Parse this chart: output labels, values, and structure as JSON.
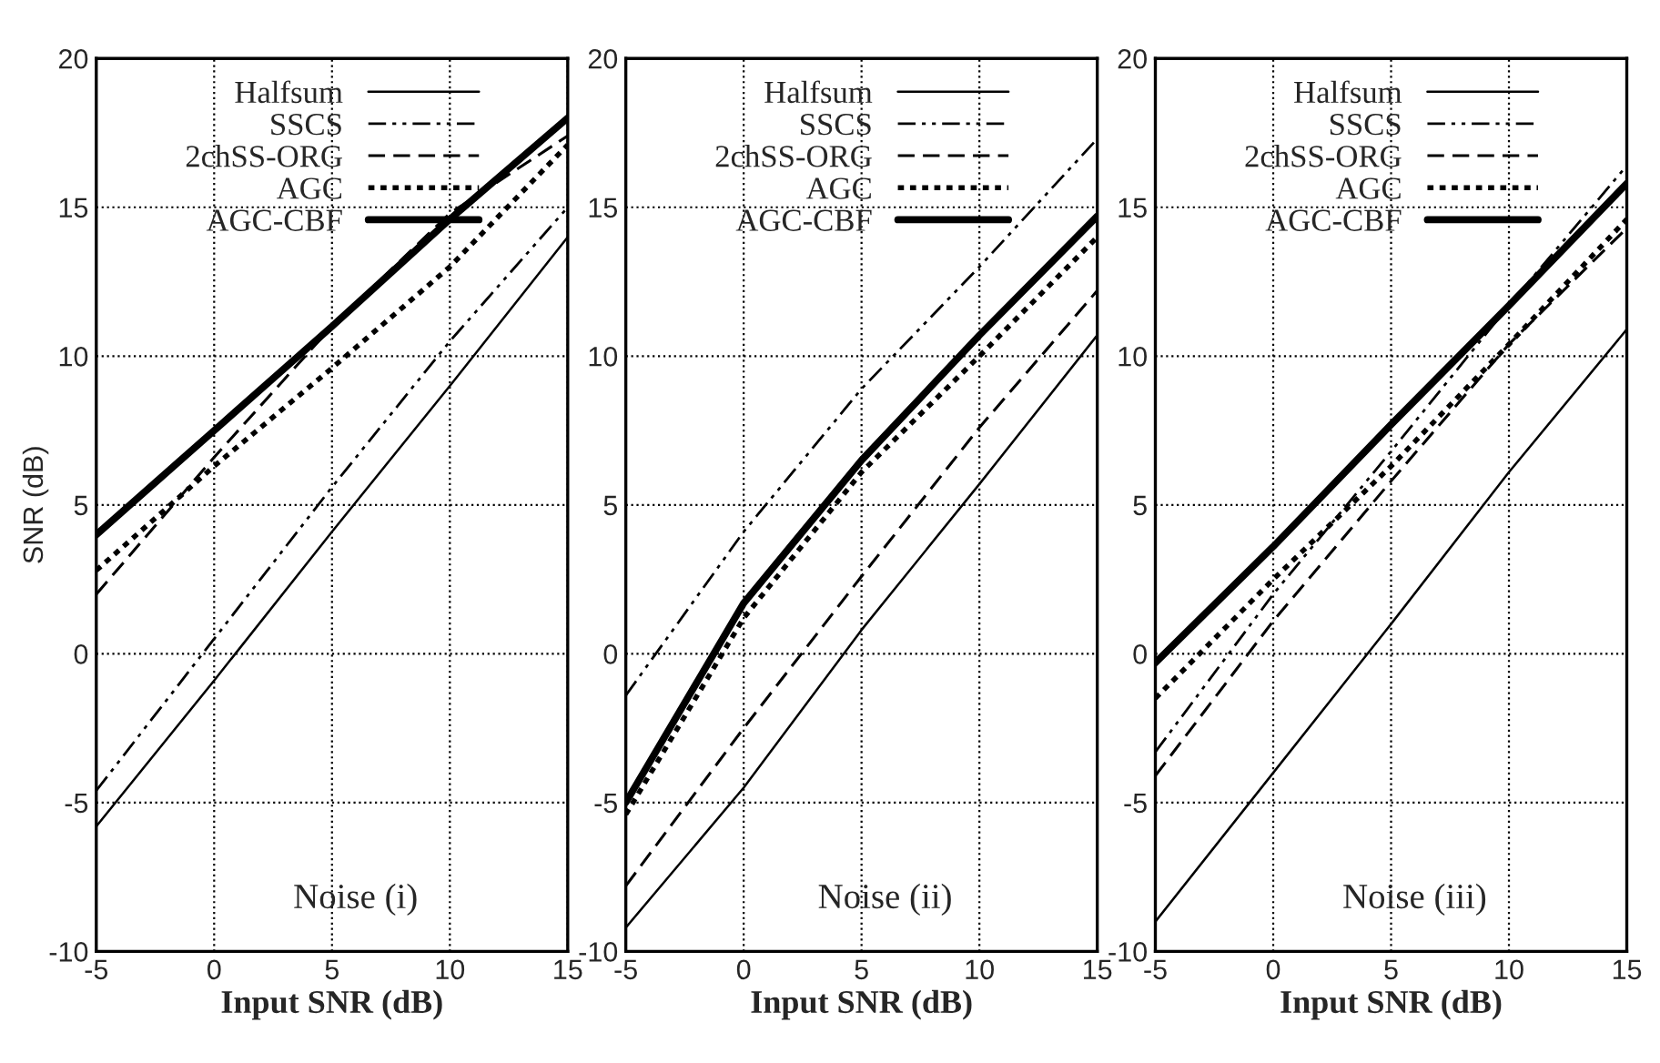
{
  "chart_data": [
    {
      "type": "line",
      "xlabel": "Input SNR (dB)",
      "ylabel": "SNR (dB)",
      "annotations": [
        "Noise (i)"
      ],
      "x": [
        -5,
        0,
        5,
        10,
        15
      ],
      "xlim": [
        -5,
        15
      ],
      "xticks": [
        -5,
        0,
        5,
        10,
        15
      ],
      "ylim": [
        -10,
        20
      ],
      "yticks": [
        -10,
        -5,
        0,
        5,
        10,
        15,
        20
      ],
      "grid": true,
      "legend": "top",
      "marker": "none",
      "series": [
        {
          "name": "Halfsum",
          "color": "#000000",
          "line_style": "solid",
          "values": [
            -5.8,
            -0.9,
            4.1,
            9.0,
            14.0
          ]
        },
        {
          "name": "SSCS",
          "color": "#000000",
          "line_style": "dashdot",
          "values": [
            -4.6,
            0.5,
            5.6,
            10.5,
            15.0
          ]
        },
        {
          "name": "2chSS-ORG",
          "color": "#000000",
          "line_style": "dashed",
          "values": [
            2.0,
            6.6,
            11.0,
            14.8,
            17.4
          ]
        },
        {
          "name": "AGC",
          "color": "#000000",
          "line_style": "dotted",
          "values": [
            2.8,
            6.3,
            9.6,
            13.0,
            17.1
          ]
        },
        {
          "name": "AGC-CBF",
          "color": "#000000",
          "line_style": "solid",
          "values": [
            4.0,
            7.5,
            11.0,
            14.6,
            18.0
          ]
        }
      ]
    },
    {
      "type": "line",
      "xlabel": "Input SNR (dB)",
      "annotations": [
        "Noise (ii)"
      ],
      "x": [
        -5,
        0,
        5,
        10,
        15
      ],
      "xlim": [
        -5,
        15
      ],
      "xticks": [
        -5,
        0,
        5,
        10,
        15
      ],
      "ylim": [
        -10,
        20
      ],
      "yticks": [
        -10,
        -5,
        0,
        5,
        10,
        15,
        20
      ],
      "grid": true,
      "legend": "top",
      "marker": "none",
      "series": [
        {
          "name": "Halfsum",
          "color": "#000000",
          "line_style": "solid",
          "values": [
            -9.2,
            -4.5,
            0.8,
            5.7,
            10.7
          ]
        },
        {
          "name": "SSCS",
          "color": "#000000",
          "line_style": "dashdot",
          "values": [
            -1.4,
            4.1,
            8.9,
            13.0,
            17.3
          ]
        },
        {
          "name": "2chSS-ORG",
          "color": "#000000",
          "line_style": "dashed",
          "values": [
            -7.8,
            -2.5,
            2.6,
            7.6,
            12.2
          ]
        },
        {
          "name": "AGC",
          "color": "#000000",
          "line_style": "dotted",
          "values": [
            -5.4,
            1.2,
            6.1,
            10.0,
            14.0
          ]
        },
        {
          "name": "AGC-CBF",
          "color": "#000000",
          "line_style": "solid",
          "values": [
            -5.0,
            1.7,
            6.5,
            10.7,
            14.7
          ]
        }
      ]
    },
    {
      "type": "line",
      "xlabel": "Input SNR (dB)",
      "annotations": [
        "Noise (iii)"
      ],
      "x": [
        -5,
        0,
        5,
        10,
        15
      ],
      "xlim": [
        -5,
        15
      ],
      "xticks": [
        -5,
        0,
        5,
        10,
        15
      ],
      "ylim": [
        -10,
        20
      ],
      "yticks": [
        -10,
        -5,
        0,
        5,
        10,
        15,
        20
      ],
      "grid": true,
      "legend": "top",
      "marker": "none",
      "series": [
        {
          "name": "Halfsum",
          "color": "#000000",
          "line_style": "solid",
          "values": [
            -9.0,
            -4.0,
            1.0,
            6.1,
            10.9
          ]
        },
        {
          "name": "SSCS",
          "color": "#000000",
          "line_style": "dashdot",
          "values": [
            -3.3,
            2.0,
            6.8,
            11.7,
            16.4
          ]
        },
        {
          "name": "2chSS-ORG",
          "color": "#000000",
          "line_style": "dashed",
          "values": [
            -4.1,
            1.1,
            5.8,
            10.4,
            14.3
          ]
        },
        {
          "name": "AGC",
          "color": "#000000",
          "line_style": "dotted",
          "values": [
            -1.5,
            2.5,
            6.3,
            10.4,
            14.6
          ]
        },
        {
          "name": "AGC-CBF",
          "color": "#000000",
          "line_style": "solid",
          "values": [
            -0.3,
            3.6,
            7.7,
            11.7,
            15.8
          ]
        }
      ]
    }
  ]
}
